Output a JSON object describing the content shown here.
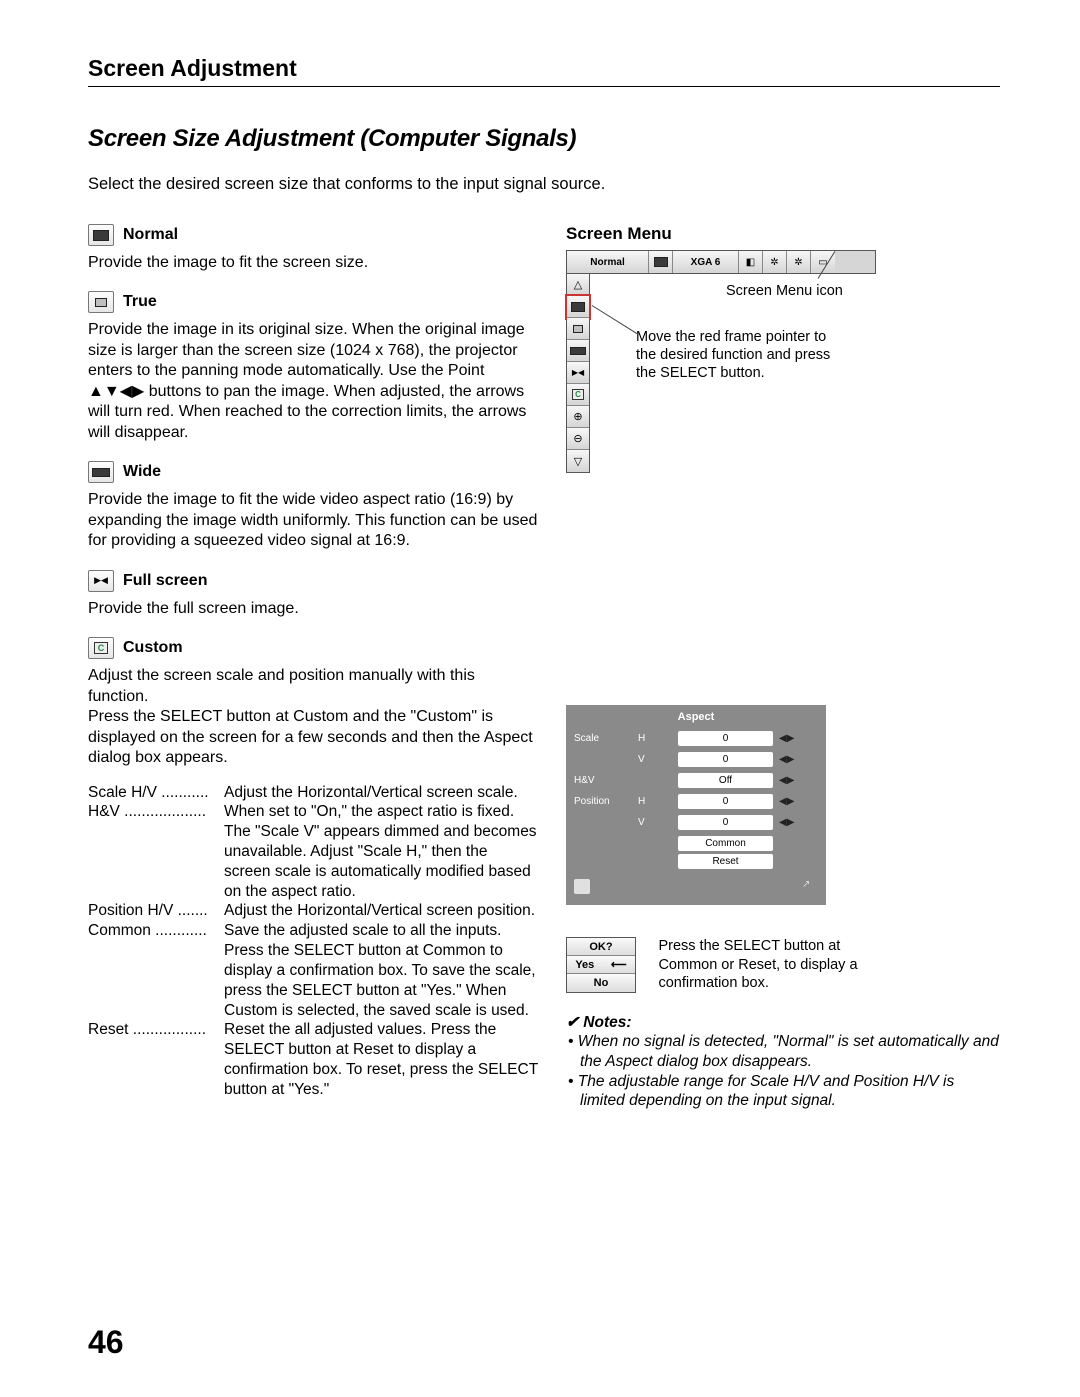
{
  "header": "Screen Adjustment",
  "section_title": "Screen Size Adjustment (Computer Signals)",
  "intro": "Select the desired screen size that conforms to the input signal source.",
  "page_number": "46",
  "items": {
    "normal": {
      "label": "Normal",
      "body": "Provide the image to fit the screen size."
    },
    "true": {
      "label": "True",
      "body": "Provide the image in its original size. When the original image size is larger than the screen size (1024 x 768), the projector enters to the panning mode automatically. Use the Point ▲▼◀▶ buttons to pan the image. When adjusted, the arrows will turn red. When reached to the correction limits, the arrows will disappear."
    },
    "wide": {
      "label": "Wide",
      "body": "Provide the image to fit the wide video aspect ratio (16:9) by expanding the image width uniformly. This function can be used for providing a squeezed video signal at 16:9."
    },
    "full": {
      "label": "Full screen",
      "body": "Provide the full screen image."
    },
    "custom": {
      "label": "Custom",
      "body1": "Adjust the screen scale and position manually with this function.",
      "body2": "Press the SELECT button at Custom and the \"Custom\" is displayed on the screen for a few seconds and then the Aspect dialog box appears."
    }
  },
  "definitions": [
    {
      "term": "Scale H/V",
      "dots": "...........",
      "def": "Adjust the Horizontal/Vertical screen scale."
    },
    {
      "term": "H&V",
      "dots": "...................",
      "def": "When set to \"On,\" the aspect ratio is fixed. The \"Scale V\" appears dimmed and becomes unavailable. Adjust \"Scale H,\" then the screen scale is automatically modified based on the aspect ratio."
    },
    {
      "term": "Position H/V",
      "dots": ".......",
      "def": "Adjust the Horizontal/Vertical screen position."
    },
    {
      "term": "Common",
      "dots": "............",
      "def": "Save the adjusted scale to all the inputs. Press the SELECT button at Common to display a confirmation box. To save the scale, press the SELECT button at \"Yes.\" When Custom is selected, the saved scale is used."
    },
    {
      "term": "Reset",
      "dots": ".................",
      "def": "Reset the all adjusted values. Press the SELECT button at Reset to display a confirmation box. To reset, press the SELECT button at \"Yes.\""
    }
  ],
  "screen_menu": {
    "title": "Screen Menu",
    "bar_label1": "Normal",
    "bar_label2": "XGA 6",
    "icon_note": "Screen Menu icon",
    "move_note": "Move the red frame pointer to the desired function and press the SELECT button."
  },
  "aspect": {
    "title": "Aspect",
    "scale": "Scale",
    "hv": "H&V",
    "position": "Position",
    "h": "H",
    "v": "V",
    "val0": "0",
    "off": "Off",
    "common": "Common",
    "reset": "Reset"
  },
  "confirm": {
    "ok": "OK?",
    "yes": "Yes",
    "no": "No",
    "arrow": "⟵",
    "note": "Press the SELECT button at Common or Reset, to display a confirmation box."
  },
  "notes": {
    "head": "✔ Notes:",
    "n1": "• When no signal is detected, \"Normal\" is set automatically and the Aspect dialog box disappears.",
    "n2": "• The adjustable range for Scale H/V and Position H/V is limited depending on the input signal."
  }
}
